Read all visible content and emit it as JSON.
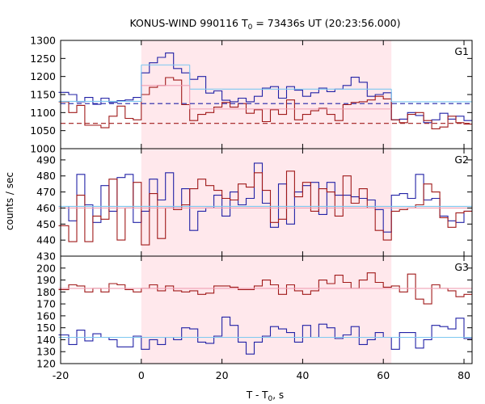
{
  "chart_data": {
    "type": "line",
    "title_main": "KONUS-WIND 990116 T",
    "title_sub": "0",
    "title_rest": " = 73436s UT (20:23:56.000)",
    "xlabel_main": "T - T",
    "xlabel_sub": "0",
    "xlabel_rest": ", s",
    "ylabel": "counts / sec",
    "xlim": [
      -20,
      82
    ],
    "x_ticks": [
      -20,
      0,
      20,
      40,
      60,
      80
    ],
    "shaded_interval": [
      0,
      62
    ],
    "colors": {
      "blue": "#2222a6",
      "red": "#a01a1a",
      "fit_blue": "#7ec8f0",
      "fit_pink": "#f0a0b4",
      "band": "#ffe8ec",
      "grid": "#000000"
    },
    "step_edges": [
      -20.5,
      -18,
      -16,
      -14,
      -12,
      -10,
      -8,
      -6,
      -4,
      -2,
      0,
      2,
      4,
      6,
      8,
      10,
      12,
      14,
      16,
      18,
      20,
      22,
      24,
      26,
      28,
      30,
      32,
      34,
      36,
      38,
      40,
      42,
      44,
      46,
      48,
      50,
      52,
      54,
      56,
      58,
      60,
      62,
      64,
      66,
      68,
      70,
      72,
      74,
      76,
      78,
      80,
      82
    ],
    "panels": [
      {
        "name": "G1",
        "ylim": [
          1000,
          1300
        ],
        "y_ticks": [
          1000,
          1050,
          1100,
          1150,
          1200,
          1250,
          1300
        ],
        "series": [
          {
            "color": "blue",
            "values": [
              1156,
              1150,
              1130,
              1142,
              1123,
              1140,
              1128,
              1133,
              1135,
              1142,
              1210,
              1238,
              1253,
              1265,
              1222,
              1210,
              1192,
              1200,
              1154,
              1160,
              1134,
              1130,
              1140,
              1130,
              1145,
              1168,
              1172,
              1140,
              1172,
              1162,
              1145,
              1155,
              1168,
              1158,
              1165,
              1175,
              1198,
              1184,
              1145,
              1150,
              1155,
              1080,
              1082,
              1100,
              1092,
              1072,
              1080,
              1098,
              1082,
              1090,
              1078
            ]
          },
          {
            "color": "red",
            "values": [
              1130,
              1100,
              1120,
              1065,
              1065,
              1058,
              1090,
              1118,
              1084,
              1080,
              1150,
              1170,
              1175,
              1197,
              1190,
              1122,
              1078,
              1095,
              1100,
              1115,
              1128,
              1115,
              1125,
              1098,
              1108,
              1075,
              1108,
              1095,
              1135,
              1080,
              1095,
              1105,
              1112,
              1095,
              1078,
              1122,
              1128,
              1130,
              1135,
              1145,
              1138,
              1080,
              1072,
              1095,
              1100,
              1078,
              1055,
              1060,
              1090,
              1072,
              1068
            ]
          }
        ],
        "fits": [
          {
            "color": "fit_blue",
            "segments": [
              [
                -20.5,
                0,
                1131
              ],
              [
                0,
                12,
                1232
              ],
              [
                12,
                62,
                1165
              ],
              [
                62,
                82,
                1130
              ]
            ]
          },
          {
            "color": "fit_pink",
            "segments": [
              [
                0,
                12,
                1175
              ],
              [
                12,
                62,
                1110
              ]
            ]
          }
        ],
        "dashed": [
          {
            "color": "blue",
            "value": 1125
          },
          {
            "color": "red",
            "value": 1070
          }
        ]
      },
      {
        "name": "G2",
        "ylim": [
          430,
          497
        ],
        "y_ticks": [
          430,
          440,
          450,
          460,
          470,
          480,
          490
        ],
        "series": [
          {
            "color": "blue",
            "values": [
              461,
              452,
              481,
              462,
              451,
              474,
              458,
              479,
              481,
              451,
              458,
              478,
              465,
              482,
              460,
              472,
              446,
              458,
              460,
              468,
              455,
              470,
              462,
              466,
              488,
              463,
              448,
              475,
              450,
              470,
              474,
              476,
              456,
              476,
              468,
              468,
              467,
              466,
              465,
              459,
              445,
              468,
              469,
              466,
              481,
              465,
              466,
              455,
              452,
              451,
              458
            ]
          },
          {
            "color": "red",
            "values": [
              449,
              439,
              468,
              439,
              455,
              453,
              478,
              440,
              460,
              476,
              437,
              469,
              441,
              460,
              459,
              462,
              472,
              478,
              474,
              471,
              466,
              465,
              475,
              473,
              482,
              471,
              451,
              453,
              483,
              467,
              476,
              458,
              472,
              470,
              455,
              480,
              463,
              472,
              460,
              446,
              440,
              458,
              459,
              460,
              462,
              475,
              470,
              454,
              448,
              457,
              458
            ]
          }
        ],
        "fits": [
          {
            "color": "fit_blue",
            "segments": [
              [
                -20.5,
                82,
                461
              ]
            ]
          },
          {
            "color": "fit_pink",
            "segments": [
              [
                -20.5,
                82,
                460
              ]
            ]
          }
        ],
        "dashed": []
      },
      {
        "name": "G3",
        "ylim": [
          120,
          210
        ],
        "y_ticks": [
          120,
          130,
          140,
          150,
          160,
          170,
          180,
          190,
          200
        ],
        "series": [
          {
            "color": "blue",
            "values": [
              144,
              136,
              148,
              139,
              145,
              142,
              140,
              134,
              134,
              143,
              132,
              140,
              136,
              142,
              140,
              150,
              149,
              138,
              137,
              143,
              159,
              152,
              138,
              128,
              138,
              143,
              151,
              149,
              146,
              138,
              152,
              142,
              153,
              150,
              141,
              144,
              151,
              136,
              140,
              146,
              142,
              132,
              146,
              146,
              133,
              140,
              152,
              151,
              149,
              158,
              141
            ]
          },
          {
            "color": "red",
            "values": [
              182,
              186,
              185,
              180,
              183,
              180,
              187,
              186,
              182,
              180,
              183,
              186,
              181,
              185,
              181,
              180,
              181,
              178,
              179,
              185,
              185,
              184,
              182,
              182,
              185,
              190,
              186,
              178,
              186,
              181,
              178,
              181,
              190,
              187,
              194,
              188,
              183,
              190,
              196,
              188,
              184,
              185,
              180,
              195,
              174,
              170,
              186,
              183,
              181,
              176,
              178
            ]
          }
        ],
        "fits": [
          {
            "color": "fit_blue",
            "segments": [
              [
                -20.5,
                82,
                142
              ]
            ]
          },
          {
            "color": "fit_pink",
            "segments": [
              [
                -20.5,
                82,
                183
              ]
            ]
          }
        ],
        "dashed": []
      }
    ]
  }
}
